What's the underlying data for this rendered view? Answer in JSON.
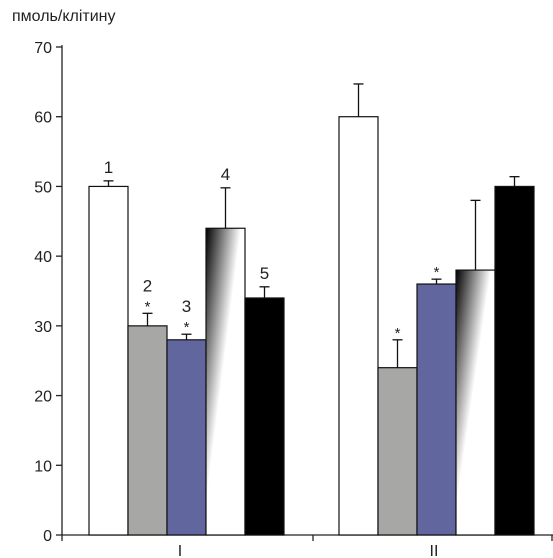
{
  "chart_data": {
    "type": "bar",
    "ylabel": "пмоль/клітину",
    "xlabel": "",
    "ylim": [
      0,
      70
    ],
    "yticks": [
      "0",
      "10",
      "20",
      "30",
      "40",
      "50",
      "60",
      "70"
    ],
    "groups": [
      "I",
      "II"
    ],
    "series": [
      {
        "label": "1",
        "fill": "white",
        "color": "#ffffff",
        "values": [
          50,
          60
        ],
        "errors": [
          0.8,
          4.7
        ],
        "significant": [
          false,
          false
        ]
      },
      {
        "label": "2",
        "fill": "gray",
        "color": "#a7a8a5",
        "values": [
          30,
          24
        ],
        "errors": [
          1.8,
          4.0
        ],
        "significant": [
          true,
          true
        ]
      },
      {
        "label": "3",
        "fill": "blue",
        "color": "#62669e",
        "values": [
          28,
          36
        ],
        "errors": [
          0.8,
          0.7
        ],
        "significant": [
          true,
          true
        ]
      },
      {
        "label": "4",
        "fill": "gradient",
        "color": "#000000",
        "values": [
          44,
          38
        ],
        "errors": [
          5.8,
          10.0
        ],
        "significant": [
          false,
          false
        ]
      },
      {
        "label": "5",
        "fill": "black",
        "color": "#000000",
        "values": [
          34,
          50
        ],
        "errors": [
          1.6,
          1.4
        ],
        "significant": [
          false,
          false
        ]
      }
    ],
    "series_labels_shown_in_group": 0,
    "significance_mark": "*",
    "grid": false,
    "legend": "none"
  }
}
